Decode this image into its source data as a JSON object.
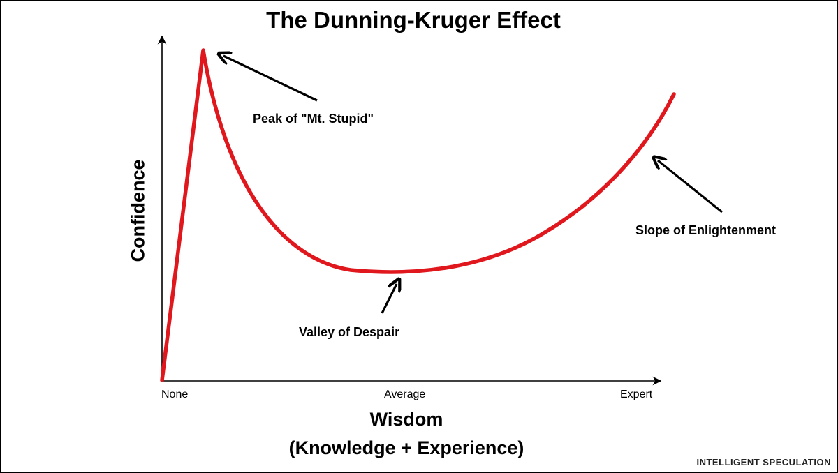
{
  "chart_data": {
    "type": "line",
    "title": "The Dunning-Kruger Effect",
    "xlabel": "Wisdom",
    "xlabel_sub": "(Knowledge + Experience)",
    "ylabel": "Confidence",
    "x_ticks": [
      "None",
      "Average",
      "Expert"
    ],
    "annotations": [
      {
        "text": "Peak of \"Mt. Stupid\""
      },
      {
        "text": "Valley of Despair"
      },
      {
        "text": "Slope of Enlightenment"
      }
    ],
    "series_color": "#e0181e",
    "grid": false,
    "legend": "none"
  },
  "watermark": "INTELLIGENT SPECULATION"
}
